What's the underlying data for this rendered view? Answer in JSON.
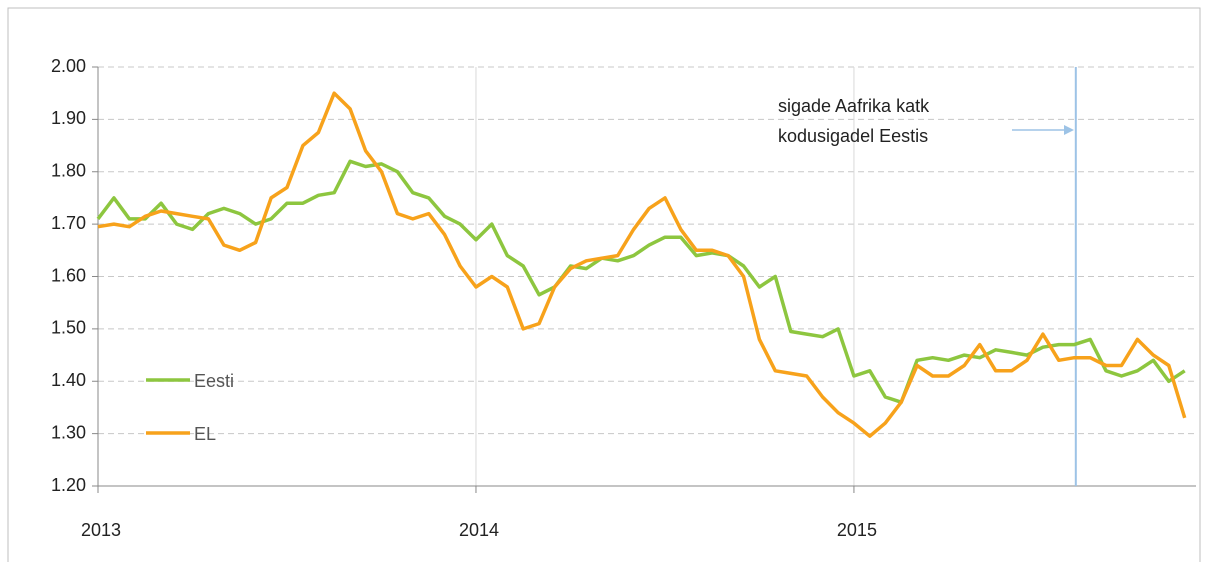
{
  "chart_data": {
    "type": "line",
    "x": [
      2013,
      2013.042,
      2013.083,
      2013.125,
      2013.167,
      2013.208,
      2013.25,
      2013.292,
      2013.333,
      2013.375,
      2013.417,
      2013.458,
      2013.5,
      2013.542,
      2013.583,
      2013.625,
      2013.667,
      2013.708,
      2013.75,
      2013.792,
      2013.833,
      2013.875,
      2013.917,
      2013.958,
      2014,
      2014.042,
      2014.083,
      2014.125,
      2014.167,
      2014.208,
      2014.25,
      2014.292,
      2014.333,
      2014.375,
      2014.417,
      2014.458,
      2014.5,
      2014.542,
      2014.583,
      2014.625,
      2014.667,
      2014.708,
      2014.75,
      2014.792,
      2014.833,
      2014.875,
      2014.917,
      2014.958,
      2015,
      2015.042,
      2015.083,
      2015.125,
      2015.167,
      2015.208,
      2015.25,
      2015.292,
      2015.333,
      2015.375,
      2015.417,
      2015.458,
      2015.5,
      2015.542,
      2015.583,
      2015.625,
      2015.667,
      2015.708,
      2015.75,
      2015.792,
      2015.833,
      2015.875
    ],
    "series": [
      {
        "name": "Eesti",
        "color": "#8dc63f",
        "values": [
          1.71,
          1.75,
          1.71,
          1.71,
          1.74,
          1.7,
          1.69,
          1.72,
          1.73,
          1.72,
          1.7,
          1.71,
          1.74,
          1.74,
          1.755,
          1.76,
          1.82,
          1.81,
          1.815,
          1.8,
          1.76,
          1.75,
          1.715,
          1.7,
          1.67,
          1.7,
          1.64,
          1.62,
          1.565,
          1.58,
          1.62,
          1.615,
          1.635,
          1.63,
          1.64,
          1.66,
          1.675,
          1.675,
          1.64,
          1.645,
          1.64,
          1.62,
          1.58,
          1.6,
          1.495,
          1.49,
          1.485,
          1.5,
          1.41,
          1.42,
          1.37,
          1.36,
          1.44,
          1.445,
          1.44,
          1.45,
          1.445,
          1.46,
          1.455,
          1.45,
          1.465,
          1.47,
          1.47,
          1.48,
          1.42,
          1.41,
          1.42,
          1.44,
          1.4,
          1.42
        ]
      },
      {
        "name": "EL",
        "color": "#f7a21b",
        "values": [
          1.695,
          1.7,
          1.695,
          1.715,
          1.725,
          1.72,
          1.715,
          1.71,
          1.66,
          1.65,
          1.665,
          1.75,
          1.77,
          1.85,
          1.875,
          1.95,
          1.92,
          1.84,
          1.8,
          1.72,
          1.71,
          1.72,
          1.68,
          1.62,
          1.58,
          1.6,
          1.58,
          1.5,
          1.51,
          1.58,
          1.615,
          1.63,
          1.635,
          1.64,
          1.69,
          1.73,
          1.75,
          1.69,
          1.65,
          1.65,
          1.64,
          1.6,
          1.48,
          1.42,
          1.415,
          1.41,
          1.37,
          1.34,
          1.32,
          1.295,
          1.32,
          1.36,
          1.43,
          1.41,
          1.41,
          1.43,
          1.47,
          1.42,
          1.42,
          1.44,
          1.49,
          1.44,
          1.445,
          1.445,
          1.43,
          1.43,
          1.48,
          1.45,
          1.43,
          1.33
        ]
      }
    ],
    "xlim": [
      2013,
      2015.905
    ],
    "xticks": [
      2013,
      2014,
      2015
    ],
    "ylim": [
      1.2,
      2.0
    ],
    "yticks": [
      {
        "value": 1.2,
        "label": "1.20"
      },
      {
        "value": 1.3,
        "label": "1.30"
      },
      {
        "value": 1.4,
        "label": "1.40"
      },
      {
        "value": 1.5,
        "label": "1.50"
      },
      {
        "value": 1.6,
        "label": "1.60"
      },
      {
        "value": 1.7,
        "label": "1.70"
      },
      {
        "value": 1.8,
        "label": "1.80"
      },
      {
        "value": 1.9,
        "label": "1.90"
      },
      {
        "value": 2.0,
        "label": "2.00"
      }
    ],
    "grid": true,
    "legend": "lower left",
    "annotation": {
      "lines": [
        "sigade Aafrika katk",
        "kodusigadel Eestis"
      ],
      "x": 2015.587,
      "color": "#9dc3e6"
    }
  }
}
